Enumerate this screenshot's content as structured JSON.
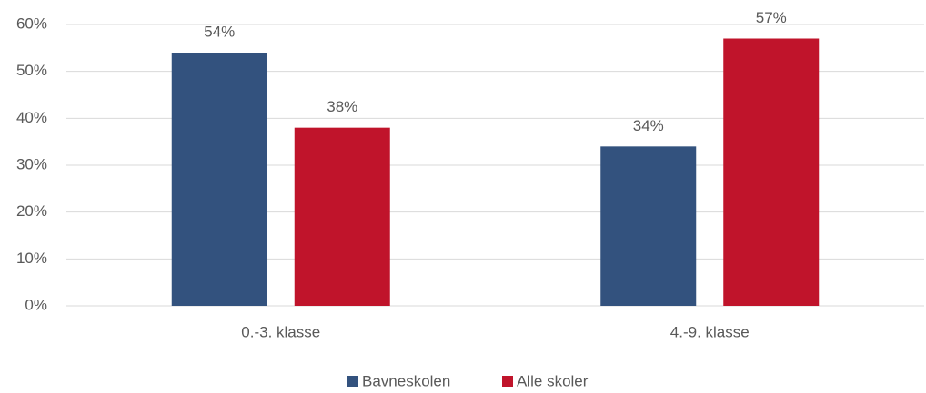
{
  "chart_data": {
    "type": "bar",
    "categories": [
      "0.-3. klasse",
      "4.-9. klasse"
    ],
    "series": [
      {
        "name": "Bavneskolen",
        "color": "#33527e",
        "values": [
          54,
          34
        ],
        "value_labels": [
          "54%",
          "34%"
        ]
      },
      {
        "name": "Alle skoler",
        "color": "#c0142b",
        "values": [
          38,
          57
        ],
        "value_labels": [
          "38%",
          "57%"
        ]
      }
    ],
    "ylim": [
      0,
      60
    ],
    "yticks": [
      {
        "value": 0,
        "label": "0%"
      },
      {
        "value": 10,
        "label": "10%"
      },
      {
        "value": 20,
        "label": "20%"
      },
      {
        "value": 30,
        "label": "30%"
      },
      {
        "value": 40,
        "label": "40%"
      },
      {
        "value": 50,
        "label": "50%"
      },
      {
        "value": 60,
        "label": "60%"
      }
    ],
    "grid": true,
    "legend": "bottom"
  }
}
